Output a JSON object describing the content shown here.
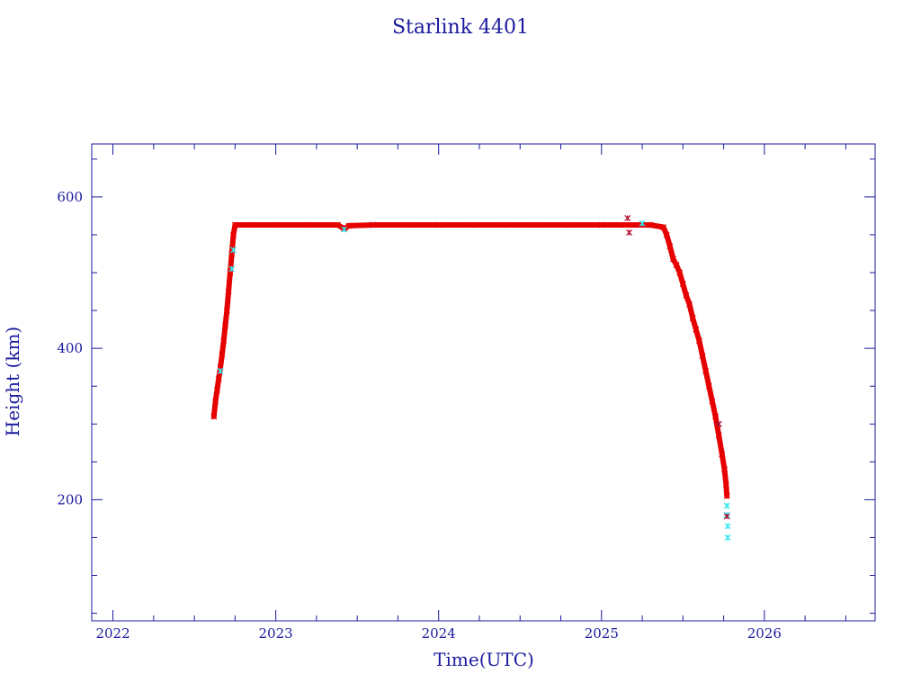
{
  "chart_data": {
    "type": "scatter",
    "title": "Starlink 4401",
    "xlabel": "Time(UTC)",
    "ylabel": "Height (km)",
    "xlim": [
      2021.87,
      2026.68
    ],
    "ylim": [
      40,
      670
    ],
    "x_ticks": [
      2022,
      2023,
      2024,
      2025,
      2026
    ],
    "x_tick_labels": [
      "2022",
      "2023",
      "2024",
      "2025",
      "2026"
    ],
    "y_ticks": [
      200,
      400,
      600
    ],
    "y_tick_labels": [
      "200",
      "400",
      "600"
    ],
    "grid": false,
    "legend": "none",
    "colors": {
      "axes": "#1a1a9e",
      "main_points": "#e60000",
      "alt_points": "#33e6f0",
      "outlier_points": "#b01030",
      "line": "#000000"
    },
    "series": [
      {
        "role": "main",
        "points": [
          [
            2022.62,
            310
          ],
          [
            2022.63,
            330
          ],
          [
            2022.64,
            345
          ],
          [
            2022.65,
            360
          ],
          [
            2022.66,
            375
          ],
          [
            2022.67,
            392
          ],
          [
            2022.68,
            410
          ],
          [
            2022.69,
            430
          ],
          [
            2022.7,
            450
          ],
          [
            2022.71,
            475
          ],
          [
            2022.72,
            500
          ],
          [
            2022.73,
            525
          ],
          [
            2022.74,
            550
          ],
          [
            2022.75,
            563
          ],
          [
            2022.85,
            563
          ],
          [
            2023.0,
            563
          ],
          [
            2023.2,
            563
          ],
          [
            2023.38,
            563
          ],
          [
            2023.42,
            558
          ],
          [
            2023.45,
            562
          ],
          [
            2023.6,
            563
          ],
          [
            2023.8,
            563
          ],
          [
            2024.0,
            563
          ],
          [
            2024.2,
            563
          ],
          [
            2024.4,
            563
          ],
          [
            2024.6,
            563
          ],
          [
            2024.8,
            563
          ],
          [
            2025.0,
            563
          ],
          [
            2025.15,
            563
          ],
          [
            2025.3,
            563
          ],
          [
            2025.38,
            560
          ],
          [
            2025.4,
            550
          ],
          [
            2025.42,
            535
          ],
          [
            2025.44,
            518
          ],
          [
            2025.46,
            510
          ],
          [
            2025.48,
            500
          ],
          [
            2025.5,
            485
          ],
          [
            2025.52,
            470
          ],
          [
            2025.54,
            458
          ],
          [
            2025.56,
            440
          ],
          [
            2025.58,
            425
          ],
          [
            2025.6,
            410
          ],
          [
            2025.62,
            390
          ],
          [
            2025.64,
            370
          ],
          [
            2025.66,
            350
          ],
          [
            2025.68,
            330
          ],
          [
            2025.7,
            310
          ],
          [
            2025.72,
            285
          ],
          [
            2025.74,
            260
          ],
          [
            2025.755,
            240
          ],
          [
            2025.765,
            220
          ],
          [
            2025.77,
            205
          ]
        ]
      },
      {
        "role": "alt",
        "points": [
          [
            2022.66,
            370
          ],
          [
            2022.73,
            505
          ],
          [
            2022.74,
            530
          ],
          [
            2023.42,
            557
          ],
          [
            2025.25,
            565
          ],
          [
            2025.77,
            192
          ],
          [
            2025.77,
            180
          ],
          [
            2025.775,
            165
          ],
          [
            2025.775,
            150
          ]
        ]
      },
      {
        "role": "outlier",
        "points": [
          [
            2025.16,
            572
          ],
          [
            2025.17,
            553
          ],
          [
            2025.72,
            300
          ],
          [
            2025.77,
            178
          ]
        ]
      }
    ]
  }
}
